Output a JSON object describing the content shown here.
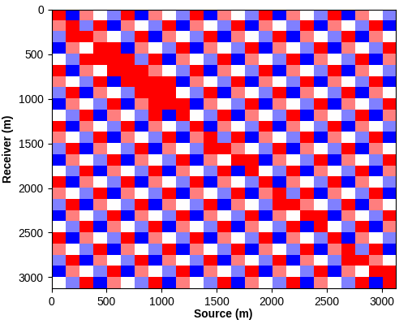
{
  "chart_data": {
    "type": "heatmap",
    "x_label": "Source (m)",
    "y_label": "Receiver (m)",
    "xlim": [
      0,
      3125
    ],
    "ylim": [
      3125,
      0
    ],
    "xticks": [
      0,
      500,
      1000,
      1500,
      2000,
      2500,
      3000
    ],
    "yticks": [
      0,
      500,
      1000,
      1500,
      2000,
      2500,
      3000
    ],
    "color": "bwr",
    "color_range": [
      -1,
      1
    ],
    "cells": [
      [
        1,
        -1,
        0.5,
        0,
        -0.5,
        1,
        -1,
        0.5,
        0,
        -0.5,
        1,
        -1,
        0.5,
        0,
        -0.5,
        1,
        -1,
        0.5,
        0,
        -0.5,
        1,
        -1,
        0.5,
        0,
        -0.5
      ],
      [
        0.5,
        1,
        -0.5,
        1,
        -1,
        0.5,
        0,
        -0.5,
        1,
        -1,
        0.5,
        0,
        -0.5,
        1,
        -1,
        0.5,
        0,
        -0.5,
        1,
        -1,
        0.5,
        0,
        -0.5,
        1,
        -1
      ],
      [
        -0.5,
        1,
        1,
        0.5,
        0,
        -0.5,
        1,
        -1,
        0.5,
        0,
        -0.5,
        1,
        -1,
        0.5,
        0,
        -0.5,
        1,
        -1,
        0.5,
        0,
        -0.5,
        1,
        -1,
        0.5,
        0
      ],
      [
        -1,
        0.5,
        0,
        1,
        1,
        -1,
        0.5,
        0,
        -0.5,
        1,
        -1,
        0.5,
        0,
        -0.5,
        1,
        -1,
        0.5,
        0,
        -0.5,
        1,
        -1,
        0.5,
        0,
        -0.5,
        1
      ],
      [
        0,
        -0.5,
        1,
        1,
        1,
        1,
        -0.5,
        1,
        -1,
        0.5,
        0,
        -0.5,
        1,
        -1,
        0.5,
        0,
        -0.5,
        1,
        -1,
        0.5,
        0,
        -0.5,
        1,
        -1,
        0.5
      ],
      [
        1,
        -1,
        0.5,
        0,
        1,
        1,
        1,
        0.5,
        0,
        -0.5,
        1,
        -1,
        0.5,
        0,
        -0.5,
        1,
        -1,
        0.5,
        0,
        -0.5,
        1,
        -1,
        0.5,
        0,
        -0.5
      ],
      [
        0.5,
        0,
        -0.5,
        1,
        -1,
        1,
        1,
        1,
        1,
        -1,
        0.5,
        0,
        -0.5,
        1,
        -1,
        0.5,
        0,
        -0.5,
        1,
        -1,
        0.5,
        0,
        -0.5,
        1,
        -1
      ],
      [
        -0.5,
        1,
        -1,
        0.5,
        0,
        -0.5,
        1,
        1,
        1,
        0,
        -0.5,
        1,
        -1,
        0.5,
        0,
        -0.5,
        1,
        -1,
        0.5,
        0,
        -0.5,
        1,
        -1,
        0.5,
        0
      ],
      [
        -1,
        0.5,
        0,
        -0.5,
        1,
        -1,
        0.5,
        1,
        1,
        1,
        -1,
        0.5,
        0,
        -0.5,
        1,
        -1,
        0.5,
        0,
        -0.5,
        1,
        -1,
        0.5,
        0,
        -0.5,
        1
      ],
      [
        0,
        -0.5,
        1,
        -1,
        0.5,
        0,
        -0.5,
        1,
        -1,
        1,
        0,
        -0.5,
        1,
        -1,
        0.5,
        0,
        -0.5,
        1,
        -1,
        0.5,
        0,
        -0.5,
        1,
        -1,
        0.5
      ],
      [
        1,
        -1,
        0.5,
        0,
        -0.5,
        1,
        -1,
        0.5,
        0,
        -0.5,
        1,
        -1,
        0.5,
        0,
        -0.5,
        1,
        -1,
        0.5,
        0,
        -0.5,
        1,
        -1,
        0.5,
        0,
        -0.5
      ],
      [
        0.5,
        0,
        -0.5,
        1,
        -1,
        0.5,
        0,
        -0.5,
        1,
        -1,
        0.5,
        1,
        -0.5,
        1,
        -1,
        0.5,
        0,
        -0.5,
        1,
        -1,
        0.5,
        0,
        -0.5,
        1,
        -1
      ],
      [
        -0.5,
        1,
        -1,
        0.5,
        0,
        -0.5,
        1,
        -1,
        0.5,
        0,
        -0.5,
        1,
        1,
        0.5,
        0,
        -0.5,
        1,
        -1,
        0.5,
        0,
        -0.5,
        1,
        -1,
        0.5,
        0
      ],
      [
        -1,
        0.5,
        0,
        -0.5,
        1,
        -1,
        0.5,
        0,
        -0.5,
        1,
        -1,
        0.5,
        0,
        1,
        1,
        -1,
        0.5,
        0,
        -0.5,
        1,
        -1,
        0.5,
        0,
        -0.5,
        1
      ],
      [
        0,
        -0.5,
        1,
        -1,
        0.5,
        0,
        -0.5,
        1,
        -1,
        0.5,
        0,
        -0.5,
        1,
        -1,
        1,
        0,
        -0.5,
        1,
        -1,
        0.5,
        0,
        -0.5,
        1,
        -1,
        0.5
      ],
      [
        1,
        -1,
        0.5,
        0,
        -0.5,
        1,
        -1,
        0.5,
        0,
        -0.5,
        1,
        -1,
        0.5,
        0,
        -0.5,
        1,
        -1,
        0.5,
        0,
        -0.5,
        1,
        -1,
        0.5,
        0,
        -0.5
      ],
      [
        0.5,
        0,
        -0.5,
        1,
        -1,
        0.5,
        0,
        -0.5,
        1,
        -1,
        0.5,
        0,
        -0.5,
        1,
        -1,
        0.5,
        1,
        -0.5,
        1,
        -1,
        0.5,
        0,
        -0.5,
        1,
        -1
      ],
      [
        -0.5,
        1,
        -1,
        0.5,
        0,
        -0.5,
        1,
        -1,
        0.5,
        0,
        -0.5,
        1,
        -1,
        0.5,
        0,
        -0.5,
        1,
        1,
        0.5,
        0,
        -0.5,
        1,
        -1,
        0.5,
        0
      ],
      [
        -1,
        0.5,
        0,
        -0.5,
        1,
        -1,
        0.5,
        0,
        -0.5,
        1,
        -1,
        0.5,
        0,
        -0.5,
        1,
        -1,
        0.5,
        0,
        1,
        1,
        -1,
        0.5,
        0,
        -0.5,
        1
      ],
      [
        0,
        -0.5,
        1,
        -1,
        0.5,
        0,
        -0.5,
        1,
        -1,
        0.5,
        0,
        -0.5,
        1,
        -1,
        0.5,
        0,
        -0.5,
        1,
        -1,
        1,
        0,
        -0.5,
        1,
        -1,
        0.5
      ],
      [
        1,
        -1,
        0.5,
        0,
        -0.5,
        1,
        -1,
        0.5,
        0,
        -0.5,
        1,
        -1,
        0.5,
        0,
        -0.5,
        1,
        -1,
        0.5,
        0,
        -0.5,
        1,
        -1,
        0.5,
        0,
        -0.5
      ],
      [
        0.5,
        0,
        -0.5,
        1,
        -1,
        0.5,
        0,
        -0.5,
        1,
        -1,
        0.5,
        0,
        -0.5,
        1,
        -1,
        0.5,
        0,
        -0.5,
        1,
        -1,
        0.5,
        1,
        -0.5,
        1,
        -1
      ],
      [
        -0.5,
        1,
        -1,
        0.5,
        0,
        -0.5,
        1,
        -1,
        0.5,
        0,
        -0.5,
        1,
        -1,
        0.5,
        0,
        -0.5,
        1,
        -1,
        0.5,
        0,
        -0.5,
        1,
        1,
        0.5,
        0
      ],
      [
        -1,
        0.5,
        0,
        -0.5,
        1,
        -1,
        0.5,
        0,
        -0.5,
        1,
        -1,
        0.5,
        0,
        -0.5,
        1,
        -1,
        0.5,
        0,
        -0.5,
        1,
        -1,
        0.5,
        0,
        1,
        1
      ],
      [
        0,
        -0.5,
        1,
        -1,
        0.5,
        0,
        -0.5,
        1,
        -1,
        0.5,
        0,
        -0.5,
        1,
        -1,
        0.5,
        0,
        -0.5,
        1,
        -1,
        0.5,
        0,
        -0.5,
        1,
        -1,
        1
      ]
    ]
  }
}
